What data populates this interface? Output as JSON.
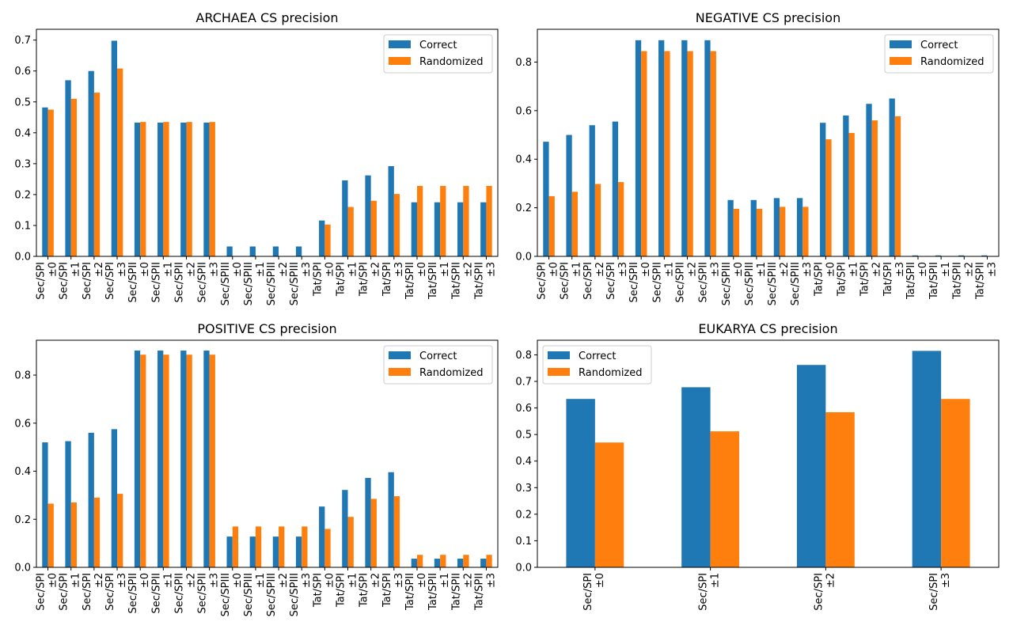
{
  "chart_data": [
    {
      "type": "bar",
      "title": "ARCHAEA CS precision",
      "categories": [
        [
          "Sec/SPI",
          "±0"
        ],
        [
          "Sec/SPI",
          "±1"
        ],
        [
          "Sec/SPI",
          "±2"
        ],
        [
          "Sec/SPI",
          "±3"
        ],
        [
          "Sec/SPII",
          "±0"
        ],
        [
          "Sec/SPII",
          "±1"
        ],
        [
          "Sec/SPII",
          "±2"
        ],
        [
          "Sec/SPII",
          "±3"
        ],
        [
          "Sec/SPIII",
          "±0"
        ],
        [
          "Sec/SPIII",
          "±1"
        ],
        [
          "Sec/SPIII",
          "±2"
        ],
        [
          "Sec/SPIII",
          "±3"
        ],
        [
          "Tat/SPI",
          "±0"
        ],
        [
          "Tat/SPI",
          "±1"
        ],
        [
          "Tat/SPI",
          "±2"
        ],
        [
          "Tat/SPI",
          "±3"
        ],
        [
          "Tat/SPII",
          "±0"
        ],
        [
          "Tat/SPII",
          "±1"
        ],
        [
          "Tat/SPII",
          "±2"
        ],
        [
          "Tat/SPII",
          "±3"
        ]
      ],
      "series": [
        {
          "name": "Correct",
          "color": "#1f77b4",
          "values": [
            0.482,
            0.57,
            0.6,
            0.698,
            0.433,
            0.433,
            0.433,
            0.433,
            0.032,
            0.032,
            0.032,
            0.032,
            0.116,
            0.246,
            0.262,
            0.292,
            0.175,
            0.175,
            0.175,
            0.175
          ]
        },
        {
          "name": "Randomized",
          "color": "#ff7f0e",
          "values": [
            0.475,
            0.51,
            0.53,
            0.608,
            0.435,
            0.435,
            0.435,
            0.435,
            0.0,
            0.0,
            0.0,
            0.0,
            0.103,
            0.16,
            0.18,
            0.202,
            0.228,
            0.228,
            0.228,
            0.228
          ]
        }
      ],
      "ylim": [
        0,
        0.735
      ],
      "yticks": [
        "0.0",
        "0.1",
        "0.2",
        "0.3",
        "0.4",
        "0.5",
        "0.6",
        "0.7"
      ],
      "legend": "top-right"
    },
    {
      "type": "bar",
      "title": "NEGATIVE CS precision",
      "categories": [
        [
          "Sec/SPI",
          "±0"
        ],
        [
          "Sec/SPI",
          "±1"
        ],
        [
          "Sec/SPI",
          "±2"
        ],
        [
          "Sec/SPI",
          "±3"
        ],
        [
          "Sec/SPII",
          "±0"
        ],
        [
          "Sec/SPII",
          "±1"
        ],
        [
          "Sec/SPII",
          "±2"
        ],
        [
          "Sec/SPII",
          "±3"
        ],
        [
          "Sec/SPIII",
          "±0"
        ],
        [
          "Sec/SPIII",
          "±1"
        ],
        [
          "Sec/SPIII",
          "±2"
        ],
        [
          "Sec/SPIII",
          "±3"
        ],
        [
          "Tat/SPI",
          "±0"
        ],
        [
          "Tat/SPI",
          "±1"
        ],
        [
          "Tat/SPI",
          "±2"
        ],
        [
          "Tat/SPI",
          "±3"
        ],
        [
          "Tat/SPII",
          "±0"
        ],
        [
          "Tat/SPII",
          "±1"
        ],
        [
          "Tat/SPII",
          "±2"
        ],
        [
          "Tat/SPII",
          "±3"
        ]
      ],
      "series": [
        {
          "name": "Correct",
          "color": "#1f77b4",
          "values": [
            0.472,
            0.5,
            0.54,
            0.555,
            0.89,
            0.89,
            0.89,
            0.89,
            0.232,
            0.232,
            0.24,
            0.24,
            0.55,
            0.58,
            0.628,
            0.65,
            0.004,
            0.004,
            0.004,
            0.004
          ]
        },
        {
          "name": "Randomized",
          "color": "#ff7f0e",
          "values": [
            0.248,
            0.266,
            0.298,
            0.306,
            0.845,
            0.845,
            0.845,
            0.845,
            0.196,
            0.196,
            0.204,
            0.204,
            0.482,
            0.508,
            0.56,
            0.577,
            0.0,
            0.0,
            0.0,
            0.0
          ]
        }
      ],
      "ylim": [
        0,
        0.935
      ],
      "yticks": [
        "0.0",
        "0.2",
        "0.4",
        "0.6",
        "0.8"
      ],
      "legend": "top-right"
    },
    {
      "type": "bar",
      "title": "POSITIVE CS precision",
      "categories": [
        [
          "Sec/SPI",
          "±0"
        ],
        [
          "Sec/SPI",
          "±1"
        ],
        [
          "Sec/SPI",
          "±2"
        ],
        [
          "Sec/SPI",
          "±3"
        ],
        [
          "Sec/SPII",
          "±0"
        ],
        [
          "Sec/SPII",
          "±1"
        ],
        [
          "Sec/SPII",
          "±2"
        ],
        [
          "Sec/SPII",
          "±3"
        ],
        [
          "Sec/SPIII",
          "±0"
        ],
        [
          "Sec/SPIII",
          "±1"
        ],
        [
          "Sec/SPIII",
          "±2"
        ],
        [
          "Sec/SPIII",
          "±3"
        ],
        [
          "Tat/SPI",
          "±0"
        ],
        [
          "Tat/SPI",
          "±1"
        ],
        [
          "Tat/SPI",
          "±2"
        ],
        [
          "Tat/SPI",
          "±3"
        ],
        [
          "Tat/SPII",
          "±0"
        ],
        [
          "Tat/SPII",
          "±1"
        ],
        [
          "Tat/SPII",
          "±2"
        ],
        [
          "Tat/SPII",
          "±3"
        ]
      ],
      "series": [
        {
          "name": "Correct",
          "color": "#1f77b4",
          "values": [
            0.52,
            0.525,
            0.56,
            0.575,
            0.902,
            0.902,
            0.902,
            0.902,
            0.128,
            0.128,
            0.128,
            0.128,
            0.253,
            0.322,
            0.372,
            0.396,
            0.036,
            0.036,
            0.036,
            0.036
          ]
        },
        {
          "name": "Randomized",
          "color": "#ff7f0e",
          "values": [
            0.265,
            0.27,
            0.29,
            0.306,
            0.885,
            0.885,
            0.885,
            0.885,
            0.17,
            0.17,
            0.17,
            0.17,
            0.16,
            0.21,
            0.285,
            0.296,
            0.052,
            0.052,
            0.052,
            0.052
          ]
        }
      ],
      "ylim": [
        0,
        0.945
      ],
      "yticks": [
        "0.0",
        "0.2",
        "0.4",
        "0.6",
        "0.8"
      ],
      "legend": "top-right"
    },
    {
      "type": "bar",
      "title": "EUKARYA CS precision",
      "categories": [
        [
          "Sec/SPI",
          "±0"
        ],
        [
          "Sec/SPI",
          "±1"
        ],
        [
          "Sec/SPI",
          "±2"
        ],
        [
          "Sec/SPI",
          "±3"
        ]
      ],
      "series": [
        {
          "name": "Correct",
          "color": "#1f77b4",
          "values": [
            0.634,
            0.678,
            0.762,
            0.815
          ]
        },
        {
          "name": "Randomized",
          "color": "#ff7f0e",
          "values": [
            0.47,
            0.512,
            0.584,
            0.634
          ]
        }
      ],
      "ylim": [
        0,
        0.855
      ],
      "yticks": [
        "0.0",
        "0.1",
        "0.2",
        "0.3",
        "0.4",
        "0.5",
        "0.6",
        "0.7",
        "0.8"
      ],
      "legend": "top-left"
    }
  ]
}
